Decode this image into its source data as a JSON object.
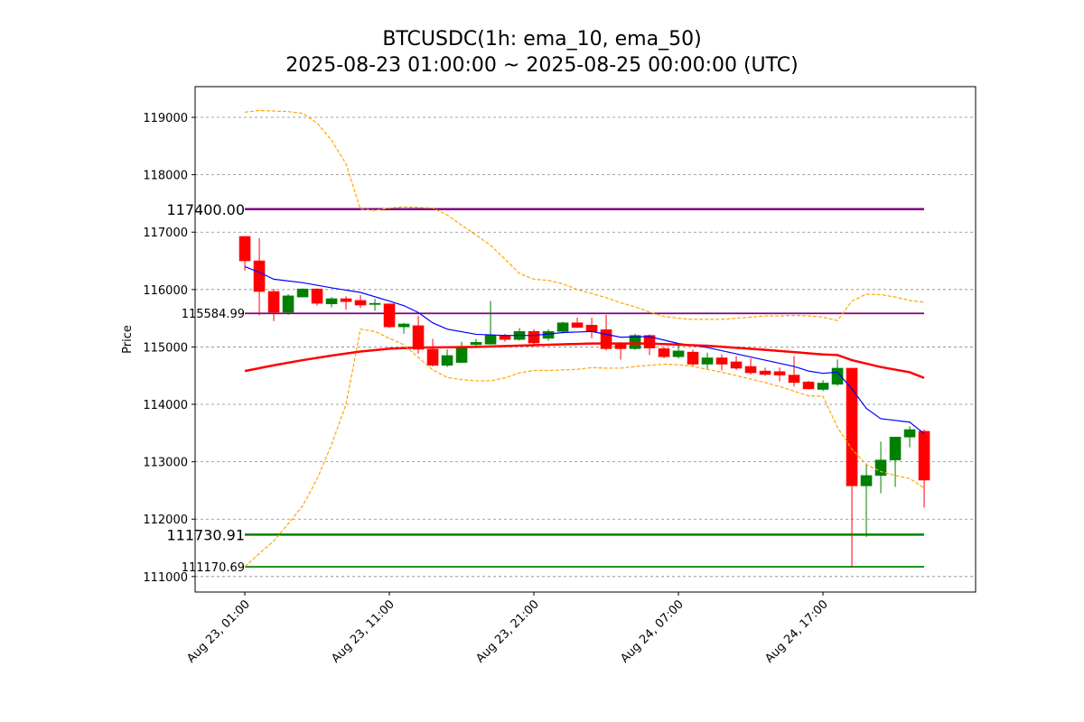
{
  "chart_data": {
    "type": "candlestick",
    "title": "BTCUSDC(1h: ema_10, ema_50)",
    "subtitle": "2025-08-23 01:00:00 ~ 2025-08-25 00:00:00 (UTC)",
    "y_label": "Price",
    "xlim": [
      -3.44,
      50.56
    ],
    "xticks": [
      {
        "value": 0,
        "label": "Aug 23, 01:00"
      },
      {
        "value": 10,
        "label": "Aug 23, 11:00"
      },
      {
        "value": 20,
        "label": "Aug 23, 21:00"
      },
      {
        "value": 30,
        "label": "Aug 24, 07:00"
      },
      {
        "value": 40,
        "label": "Aug 24, 17:00"
      }
    ],
    "ylim": [
      110730,
      119535
    ],
    "yticks": [
      111000,
      112000,
      113000,
      114000,
      115000,
      116000,
      117000,
      118000,
      119000
    ],
    "grid": true,
    "up_color": "green",
    "down_color": "red",
    "candles": {
      "open": [
        116925,
        116500,
        115966,
        115605,
        115870,
        116010,
        115750,
        115840,
        115810,
        115740,
        115750,
        115350,
        115370,
        114960,
        114680,
        114730,
        115040,
        115050,
        115200,
        115130,
        115270,
        115150,
        115270,
        115420,
        115380,
        115300,
        115040,
        114970,
        115200,
        114970,
        114830,
        114910,
        114700,
        114810,
        114740,
        114660,
        114580,
        114570,
        114510,
        114390,
        114260,
        114350,
        114630,
        112580,
        112760,
        113030,
        113430,
        113530
      ],
      "high": [
        116925,
        116894,
        116010,
        115920,
        116020,
        116020,
        115870,
        115880,
        115900,
        115840,
        115750,
        115420,
        115540,
        115140,
        114960,
        115090,
        115140,
        115800,
        115230,
        115330,
        115310,
        115310,
        115440,
        115510,
        115510,
        115560,
        115080,
        115230,
        115220,
        115000,
        115060,
        114950,
        114900,
        114870,
        114840,
        114800,
        114640,
        114640,
        114840,
        114410,
        114420,
        114780,
        114630,
        112970,
        113350,
        113430,
        113620,
        113560
      ],
      "low": [
        116330,
        115550,
        115450,
        115560,
        115870,
        115720,
        115690,
        115650,
        115680,
        115630,
        115330,
        115230,
        114880,
        114660,
        114650,
        114720,
        115000,
        115040,
        115090,
        115110,
        115040,
        115110,
        115250,
        115330,
        115150,
        114940,
        114780,
        114950,
        114860,
        114800,
        114800,
        114670,
        114620,
        114590,
        114600,
        114520,
        114500,
        114400,
        114310,
        114260,
        114230,
        114320,
        111170,
        111690,
        112450,
        112560,
        113250,
        112200
      ],
      "close": [
        116500,
        115966,
        115605,
        115890,
        116010,
        115760,
        115840,
        115790,
        115730,
        115760,
        115350,
        115400,
        114960,
        114680,
        114850,
        115010,
        115080,
        115200,
        115130,
        115270,
        115070,
        115270,
        115420,
        115340,
        115270,
        114970,
        114970,
        115200,
        114980,
        114830,
        114930,
        114700,
        114810,
        114700,
        114630,
        114550,
        114520,
        114510,
        114380,
        114270,
        114370,
        114630,
        112580,
        112760,
        113030,
        113430,
        113560,
        112680
      ]
    },
    "series": [
      {
        "color": "blue",
        "style": "solid",
        "width": 1.2,
        "x": [
          0,
          1,
          2,
          4,
          6,
          8,
          10,
          11,
          12,
          13,
          14,
          16,
          18,
          20,
          22,
          24,
          26,
          28,
          30,
          32,
          34,
          36,
          38,
          39,
          40,
          41,
          42,
          43,
          44,
          45,
          46,
          47
        ],
        "values": [
          116400,
          116300,
          116180,
          116120,
          116030,
          115950,
          115800,
          115720,
          115600,
          115420,
          115310,
          115220,
          115200,
          115200,
          115250,
          115270,
          115170,
          115180,
          115060,
          114990,
          114880,
          114770,
          114660,
          114580,
          114540,
          114560,
          114270,
          113930,
          113750,
          113720,
          113690,
          113490
        ]
      },
      {
        "color": "red",
        "style": "solid",
        "width": 2.5,
        "x": [
          0,
          2,
          4,
          6,
          8,
          10,
          12,
          16,
          20,
          24,
          28,
          32,
          36,
          40,
          41,
          42,
          44,
          46,
          47
        ],
        "values": [
          114580,
          114680,
          114770,
          114850,
          114920,
          114970,
          114990,
          115000,
          115030,
          115060,
          115060,
          115020,
          114950,
          114870,
          114860,
          114770,
          114650,
          114560,
          114460
        ]
      },
      {
        "color": "orange",
        "style": "dashed",
        "width": 1.2,
        "x": [
          0,
          1,
          3,
          4,
          5,
          6,
          7,
          8,
          9,
          10,
          11,
          12,
          13,
          14,
          15,
          16,
          17,
          18,
          19,
          20,
          21,
          22,
          23,
          24,
          25,
          26,
          27,
          28,
          29,
          30,
          31,
          32,
          33,
          34,
          35,
          36,
          37,
          38,
          39,
          40,
          41,
          42,
          43,
          44,
          45,
          46,
          47
        ],
        "values": [
          119090,
          119120,
          119100,
          119070,
          118900,
          118600,
          118190,
          117400,
          117380,
          117420,
          117440,
          117430,
          117420,
          117300,
          117120,
          116950,
          116770,
          116530,
          116280,
          116180,
          116160,
          116100,
          116000,
          115930,
          115860,
          115770,
          115700,
          115610,
          115530,
          115500,
          115480,
          115480,
          115480,
          115500,
          115520,
          115540,
          115540,
          115550,
          115540,
          115520,
          115460,
          115800,
          115920,
          115910,
          115870,
          115810,
          115780
        ]
      },
      {
        "color": "orange",
        "style": "dashed",
        "width": 1.2,
        "x": [
          0,
          1,
          2,
          3,
          4,
          5,
          6,
          7,
          8,
          9,
          10,
          11,
          12,
          13,
          14,
          15,
          16,
          17,
          18,
          19,
          20,
          21,
          22,
          23,
          24,
          25,
          26,
          27,
          28,
          29,
          30,
          31,
          32,
          33,
          34,
          35,
          36,
          37,
          38,
          39,
          40,
          41,
          42,
          43,
          44,
          45,
          46,
          47
        ],
        "values": [
          111170,
          111400,
          111620,
          111920,
          112230,
          112700,
          113300,
          114000,
          115310,
          115270,
          115150,
          115040,
          114820,
          114600,
          114470,
          114430,
          114410,
          114410,
          114460,
          114550,
          114590,
          114590,
          114600,
          114610,
          114640,
          114630,
          114630,
          114660,
          114680,
          114700,
          114690,
          114660,
          114610,
          114560,
          114500,
          114440,
          114380,
          114310,
          114230,
          114150,
          114140,
          113600,
          113220,
          112950,
          112830,
          112760,
          112710,
          112540
        ]
      }
    ],
    "levels": [
      {
        "value": 117400,
        "label": "117400.00",
        "color": "purple",
        "major": true
      },
      {
        "value": 115584.99,
        "label": "115584.99",
        "color": "purple",
        "major": false
      },
      {
        "value": 111730.91,
        "label": "111730.91",
        "color": "green",
        "major": true
      },
      {
        "value": 111170.69,
        "label": "111170.69",
        "color": "green",
        "major": false
      }
    ]
  }
}
